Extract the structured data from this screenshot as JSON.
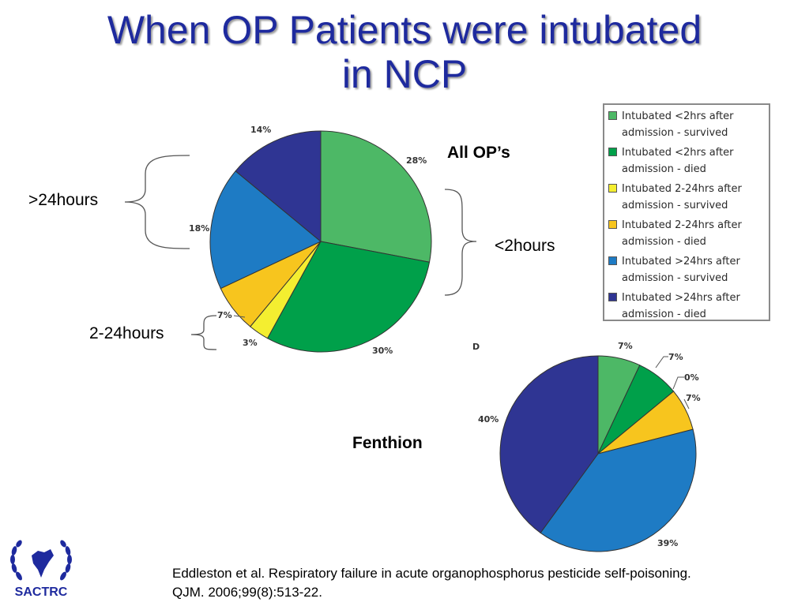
{
  "title": {
    "line1": "When OP Patients were intubated",
    "line2": "in NCP"
  },
  "labels": {
    "all_ops": "All OP’s",
    "fenthion": "Fenthion",
    "over_24h": ">24hours",
    "under_2h": "<2hours",
    "two_to_24h": "2-24hours",
    "panel_letter": "D"
  },
  "legend": [
    {
      "line1": "Intubated <2hrs after",
      "line2": "admission - survived",
      "color": "#4db866"
    },
    {
      "line1": "Intubated <2hrs after",
      "line2": "admission - died",
      "color": "#00a04a"
    },
    {
      "line1": "Intubated 2-24hrs after",
      "line2": "admission - survived",
      "color": "#f4ee30"
    },
    {
      "line1": "Intubated 2-24hrs after",
      "line2": "admission - died",
      "color": "#f7c51e"
    },
    {
      "line1": "Intubated >24hrs after",
      "line2": "admission - survived",
      "color": "#1e7bc4"
    },
    {
      "line1": "Intubated >24hrs after",
      "line2": "admission - died",
      "color": "#2f3593"
    }
  ],
  "chart_data": [
    {
      "type": "pie",
      "title": "All OP’s",
      "categories": [
        "Intubated <2hrs after admission - survived",
        "Intubated <2hrs after admission - died",
        "Intubated 2-24hrs after admission - survived",
        "Intubated 2-24hrs after admission - died",
        "Intubated >24hrs after admission - survived",
        "Intubated >24hrs after admission - died"
      ],
      "values": [
        28,
        30,
        3,
        7,
        18,
        14
      ],
      "value_labels": [
        "28%",
        "30%",
        "3%",
        "7%",
        "18%",
        "14%"
      ],
      "colors": [
        "#4db866",
        "#00a04a",
        "#f4ee30",
        "#f7c51e",
        "#1e7bc4",
        "#2f3593"
      ],
      "legend_position": "right"
    },
    {
      "type": "pie",
      "title": "Fenthion",
      "categories": [
        "Intubated <2hrs after admission - survived",
        "Intubated <2hrs after admission - died",
        "Intubated 2-24hrs after admission - survived",
        "Intubated 2-24hrs after admission - died",
        "Intubated >24hrs after admission - survived",
        "Intubated >24hrs after admission - died"
      ],
      "values": [
        7,
        7,
        0,
        7,
        39,
        40
      ],
      "value_labels": [
        "7%",
        "7%",
        "0%",
        "7%",
        "39%",
        "40%"
      ],
      "colors": [
        "#4db866",
        "#00a04a",
        "#f4ee30",
        "#f7c51e",
        "#1e7bc4",
        "#2f3593"
      ]
    }
  ],
  "citation": {
    "line1": "Eddleston et  al. Respiratory failure in acute organophosphorus pesticide self-poisoning.",
    "line2": "QJM. 2006;99(8):513-22."
  },
  "logo": {
    "text": "SACTRC"
  }
}
